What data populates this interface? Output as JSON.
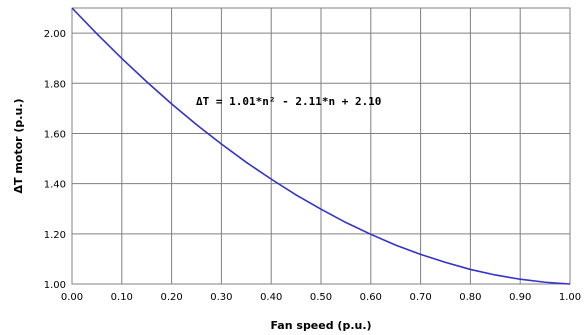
{
  "chart_data": {
    "type": "line",
    "title": "",
    "xlabel": "Fan speed (p.u.)",
    "ylabel": "ΔT motor (p.u.)",
    "xlim": [
      0,
      1
    ],
    "ylim": [
      1.0,
      2.1
    ],
    "x_ticks": [
      "0.00",
      "0.10",
      "0.20",
      "0.30",
      "0.40",
      "0.50",
      "0.60",
      "0.70",
      "0.80",
      "0.90",
      "1.00"
    ],
    "y_ticks": [
      "1.00",
      "1.20",
      "1.40",
      "1.60",
      "1.80",
      "2.00"
    ],
    "grid": true,
    "annotation": "ΔT = 1.01*n² - 2.11*n + 2.10",
    "line_color": "#3333cc",
    "series": [
      {
        "x": [
          0.0,
          0.05,
          0.1,
          0.15,
          0.2,
          0.25,
          0.3,
          0.35,
          0.4,
          0.45,
          0.5,
          0.55,
          0.6,
          0.65,
          0.7,
          0.75,
          0.8,
          0.85,
          0.9,
          0.95,
          1.0
        ],
        "values": [
          2.1,
          1.997,
          1.899,
          1.806,
          1.718,
          1.635,
          1.558,
          1.485,
          1.418,
          1.355,
          1.298,
          1.245,
          1.198,
          1.155,
          1.118,
          1.086,
          1.058,
          1.036,
          1.019,
          1.007,
          1.0
        ]
      }
    ]
  }
}
